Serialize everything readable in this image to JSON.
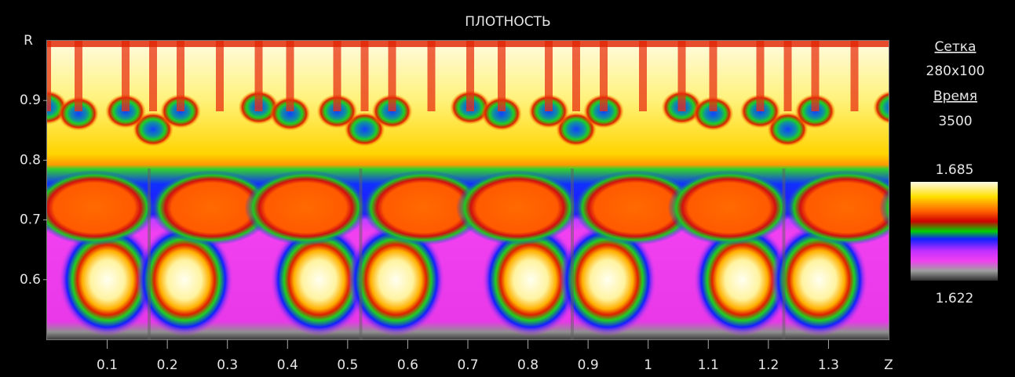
{
  "chart_data": {
    "type": "heatmap",
    "title": "ПЛОТНОСТЬ",
    "x_label": "Z",
    "y_label": "R",
    "xlim": [
      0,
      1.4
    ],
    "ylim": [
      0.5,
      1.0
    ],
    "xticks": [
      0.1,
      0.2,
      0.3,
      0.4,
      0.5,
      0.6,
      0.7,
      0.8,
      0.9,
      1,
      1.1,
      1.2,
      1.3
    ],
    "yticks": [
      0.6,
      0.7,
      0.8,
      0.9
    ],
    "colorbar": {
      "max": 1.685,
      "min": 1.622
    }
  },
  "info": {
    "grid_label": "Сетка",
    "grid": "280x100",
    "time_label": "Время",
    "time": "3500"
  }
}
